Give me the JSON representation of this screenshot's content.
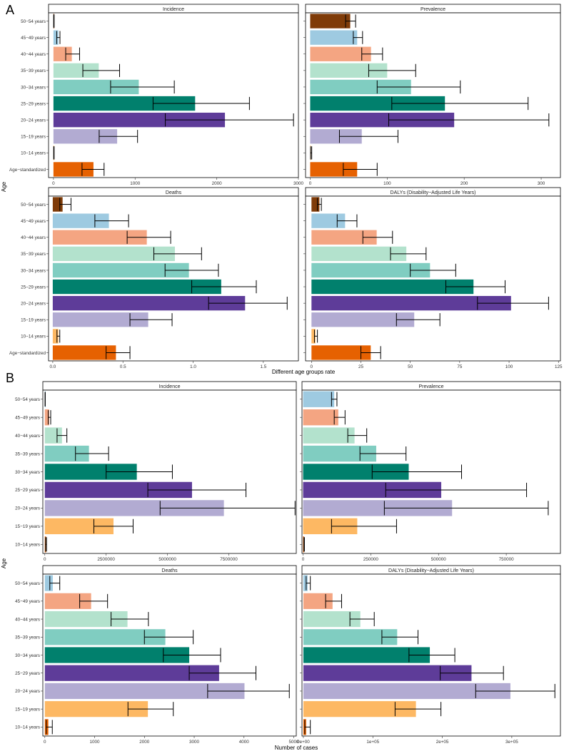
{
  "figure": {
    "panel_labels": [
      "A",
      "B"
    ],
    "a_xlabel": "Different age groups rate",
    "b_xlabel": "Number of cases",
    "ylabel": "Age"
  },
  "colors": {
    "50-54 years": "#7f3b08",
    "45-49 years": "#9ecae1",
    "40-44 years": "#f4a582",
    "35-39 years": "#b3e2cd",
    "30-34 years": "#80cdc1",
    "25-29 years": "#01806d",
    "20-24 years": "#5e3c99",
    "15-19 years": "#b2abd2",
    "10-14 years": "#fdb863",
    "Age-standardized": "#e66101",
    "B_50-54 years": "#9ecae1",
    "B_45-49 years": "#f4a582",
    "B_40-44 years": "#b3e2cd",
    "B_35-39 years": "#80cdc1",
    "B_30-34 years": "#01806d",
    "B_25-29 years": "#5e3c99",
    "B_20-24 years": "#b2abd2",
    "B_15-19 years": "#fdb863",
    "B_10-14 years": "#e66101"
  },
  "chart_data": [
    {
      "type": "bar",
      "panel": "A",
      "title": "Incidence",
      "categories": [
        "50-54 years",
        "45-49 years",
        "40-44 years",
        "35-39 years",
        "30-34 years",
        "25-29 years",
        "20-24 years",
        "15-19 years",
        "10-14 years",
        "Age-standardized"
      ],
      "values": [
        5,
        60,
        225,
        555,
        1045,
        1735,
        2100,
        780,
        5,
        490
      ],
      "lower": [
        3,
        40,
        150,
        360,
        700,
        1220,
        1370,
        560,
        3,
        350
      ],
      "upper": [
        8,
        80,
        320,
        810,
        1480,
        2400,
        2940,
        1030,
        8,
        620
      ],
      "xlim": [
        -60,
        3000
      ],
      "ticks": [
        0,
        1000,
        2000,
        3000
      ],
      "tick_labels": [
        "0",
        "1000",
        "2000",
        "3000"
      ]
    },
    {
      "type": "bar",
      "panel": "A",
      "title": "Prevalence",
      "categories": [
        "50-54 years",
        "45-49 years",
        "40-44 years",
        "35-39 years",
        "30-34 years",
        "25-29 years",
        "20-24 years",
        "15-19 years",
        "10-14 years",
        "Age-standardized"
      ],
      "values": [
        52,
        61,
        79,
        100,
        131,
        175,
        187,
        67,
        1,
        61
      ],
      "lower": [
        46,
        56,
        67,
        76,
        87,
        106,
        102,
        38,
        0.5,
        43
      ],
      "upper": [
        59,
        68,
        94,
        137,
        195,
        283,
        310,
        114,
        2,
        87
      ],
      "xlim": [
        -6,
        325
      ],
      "ticks": [
        0,
        100,
        200,
        300
      ],
      "tick_labels": [
        "0",
        "100",
        "200",
        "300"
      ]
    },
    {
      "type": "bar",
      "panel": "A",
      "title": "Deaths",
      "categories": [
        "50-54 years",
        "45-49 years",
        "40-44 years",
        "35-39 years",
        "30-34 years",
        "25-29 years",
        "20-24 years",
        "15-19 years",
        "10-14 years",
        "Age-standardized"
      ],
      "values": [
        0.07,
        0.4,
        0.67,
        0.87,
        0.97,
        1.2,
        1.37,
        0.68,
        0.04,
        0.45
      ],
      "lower": [
        0.05,
        0.3,
        0.53,
        0.72,
        0.8,
        0.99,
        1.11,
        0.55,
        0.03,
        0.38
      ],
      "upper": [
        0.13,
        0.54,
        0.84,
        1.06,
        1.18,
        1.45,
        1.67,
        0.85,
        0.05,
        0.55
      ],
      "xlim": [
        -0.03,
        1.75
      ],
      "ticks": [
        0,
        0.5,
        1.0,
        1.5
      ],
      "tick_labels": [
        "0.0",
        "0.5",
        "1.0",
        "1.5"
      ]
    },
    {
      "type": "bar",
      "panel": "A",
      "title": "DALYs (Disability−Adjusted Life Years)",
      "categories": [
        "50-54 years",
        "45-49 years",
        "40-44 years",
        "35-39 years",
        "30-34 years",
        "25-29 years",
        "20-24 years",
        "15-19 years",
        "10-14 years",
        "Age-standardized"
      ],
      "values": [
        4,
        17,
        33,
        48,
        60,
        82,
        101,
        52,
        2,
        30
      ],
      "lower": [
        3,
        13,
        26,
        40,
        50,
        68,
        84,
        43,
        1.5,
        25
      ],
      "upper": [
        5,
        23,
        41,
        58,
        73,
        98,
        120,
        65,
        3,
        35
      ],
      "xlim": [
        -3,
        126
      ],
      "ticks": [
        0,
        25,
        50,
        75,
        100,
        125
      ],
      "tick_labels": [
        "0",
        "25",
        "50",
        "75",
        "100",
        "125"
      ]
    },
    {
      "type": "bar",
      "panel": "B",
      "title": "Incidence",
      "categories": [
        "50-54 years",
        "45-49 years",
        "40-44 years",
        "35-39 years",
        "30-34 years",
        "25-29 years",
        "20-24 years",
        "15-19 years",
        "10-14 years"
      ],
      "values": [
        15000,
        180000,
        700000,
        1800000,
        3750000,
        6000000,
        7300000,
        2800000,
        50000
      ],
      "lower": [
        10000,
        140000,
        500000,
        1250000,
        2500000,
        4200000,
        4700000,
        2000000,
        30000
      ],
      "upper": [
        20000,
        240000,
        900000,
        2600000,
        5200000,
        8200000,
        10200000,
        3600000,
        70000
      ],
      "xlim": [
        -80000,
        10250000
      ],
      "ticks": [
        0,
        2500000,
        5000000,
        7500000
      ],
      "tick_labels": [
        "0",
        "2500000",
        "5000000",
        "7500000"
      ]
    },
    {
      "type": "bar",
      "panel": "B",
      "title": "Prevalence",
      "categories": [
        "50-54 years",
        "45-49 years",
        "40-44 years",
        "35-39 years",
        "30-34 years",
        "25-29 years",
        "20-24 years",
        "15-19 years",
        "10-14 years"
      ],
      "values": [
        115000,
        130000,
        190000,
        270000,
        390000,
        510000,
        550000,
        200000,
        4000
      ],
      "lower": [
        105000,
        115000,
        165000,
        210000,
        255000,
        305000,
        300000,
        105000,
        3000
      ],
      "upper": [
        125000,
        155000,
        235000,
        380000,
        585000,
        825000,
        905000,
        345000,
        5000
      ],
      "xlim": [
        -4000,
        950000
      ],
      "ticks": [
        0,
        250000,
        500000,
        750000
      ],
      "tick_labels": [
        "0",
        "250000",
        "500000",
        "750000"
      ]
    },
    {
      "type": "bar",
      "panel": "B",
      "title": "Deaths",
      "categories": [
        "50-54 years",
        "45-49 years",
        "40-44 years",
        "35-39 years",
        "30-34 years",
        "25-29 years",
        "20-24 years",
        "15-19 years",
        "10-14 years"
      ],
      "values": [
        160,
        930,
        1660,
        2420,
        2900,
        3500,
        4010,
        2070,
        70
      ],
      "lower": [
        100,
        700,
        1330,
        2000,
        2380,
        2900,
        3270,
        1670,
        30
      ],
      "upper": [
        300,
        1260,
        2080,
        2980,
        3530,
        4240,
        4910,
        2580,
        150
      ],
      "xlim": [
        -40,
        5050
      ],
      "ticks": [
        0,
        1000,
        2000,
        3000,
        4000,
        5000
      ],
      "tick_labels": [
        "0",
        "1000",
        "2000",
        "3000",
        "4000",
        "5000"
      ]
    },
    {
      "type": "bar",
      "panel": "B",
      "title": "DALYs (Disability−Adjusted Life Years)",
      "categories": [
        "50-54 years",
        "45-49 years",
        "40-44 years",
        "35-39 years",
        "30-34 years",
        "25-29 years",
        "20-24 years",
        "15-19 years",
        "10-14 years"
      ],
      "values": [
        6000,
        42000,
        82000,
        135000,
        182000,
        242000,
        298000,
        162000,
        4000
      ],
      "lower": [
        4000,
        32000,
        67000,
        113000,
        152000,
        197000,
        248000,
        132000,
        2000
      ],
      "upper": [
        10000,
        55000,
        102000,
        165000,
        218000,
        288000,
        362000,
        198000,
        10000
      ],
      "xlim": [
        -2000,
        370000
      ],
      "ticks": [
        0,
        100000,
        200000,
        300000
      ],
      "tick_labels": [
        "0e+00",
        "1e+05",
        "2e+05",
        "3e+05"
      ]
    }
  ]
}
